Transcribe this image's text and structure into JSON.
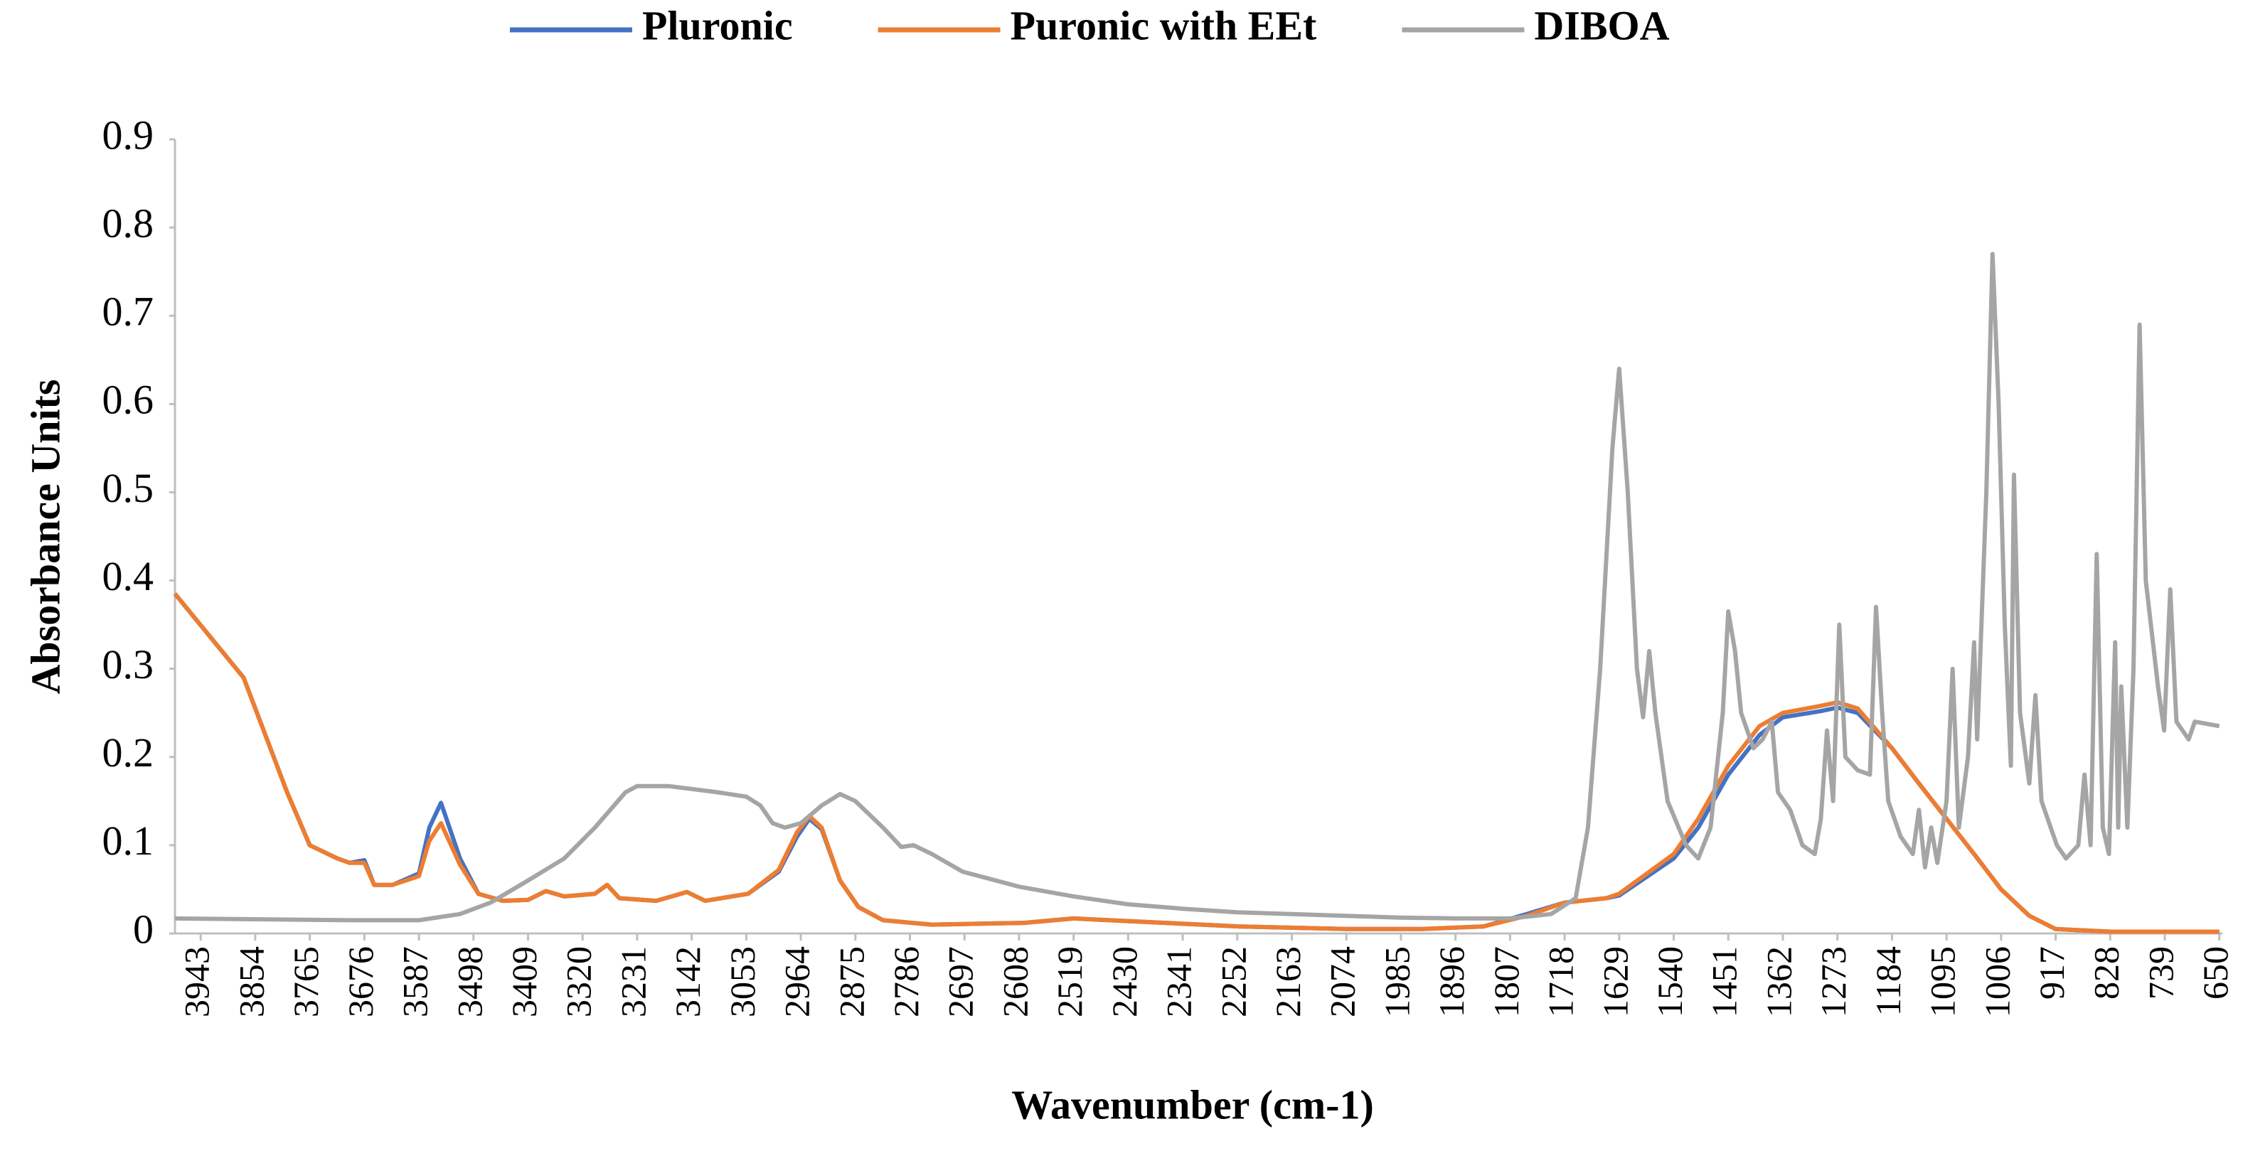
{
  "chart_data": {
    "type": "line",
    "xlabel": "Wavenumber (cm-1)",
    "ylabel": "Absorbance Units",
    "xlim": [
      3985,
      645
    ],
    "ylim": [
      0,
      0.9
    ],
    "yticks": [
      0,
      0.1,
      0.2,
      0.3,
      0.4,
      0.5,
      0.6,
      0.7,
      0.8,
      0.9
    ],
    "xticks": [
      3943,
      3854,
      3765,
      3676,
      3587,
      3498,
      3409,
      3320,
      3231,
      3142,
      3053,
      2964,
      2875,
      2786,
      2697,
      2608,
      2519,
      2430,
      2341,
      2252,
      2163,
      2074,
      1985,
      1896,
      1807,
      1718,
      1629,
      1540,
      1451,
      1362,
      1273,
      1184,
      1095,
      1006,
      917,
      828,
      739,
      650
    ],
    "series": [
      {
        "name": "Pluronic",
        "color": "#4472c4",
        "x": [
          3985,
          3873,
          3802,
          3765,
          3720,
          3700,
          3676,
          3660,
          3630,
          3587,
          3570,
          3551,
          3520,
          3490,
          3450,
          3409,
          3380,
          3350,
          3300,
          3280,
          3260,
          3200,
          3150,
          3120,
          3050,
          3000,
          2970,
          2950,
          2930,
          2900,
          2870,
          2830,
          2750,
          2600,
          2519,
          2400,
          2250,
          2074,
          1950,
          1850,
          1780,
          1718,
          1650,
          1629,
          1540,
          1500,
          1451,
          1400,
          1362,
          1300,
          1273,
          1240,
          1184,
          1140,
          1095,
          1050,
          1006,
          960,
          917,
          828,
          650
        ],
        "values": [
          0.385,
          0.29,
          0.16,
          0.1,
          0.085,
          0.08,
          0.083,
          0.055,
          0.055,
          0.068,
          0.12,
          0.148,
          0.085,
          0.045,
          0.037,
          0.038,
          0.048,
          0.042,
          0.045,
          0.055,
          0.04,
          0.037,
          0.047,
          0.037,
          0.045,
          0.07,
          0.11,
          0.13,
          0.118,
          0.06,
          0.03,
          0.015,
          0.01,
          0.012,
          0.017,
          0.013,
          0.008,
          0.005,
          0.005,
          0.008,
          0.022,
          0.035,
          0.04,
          0.043,
          0.085,
          0.12,
          0.18,
          0.225,
          0.245,
          0.252,
          0.256,
          0.25,
          0.21,
          0.17,
          0.13,
          0.09,
          0.05,
          0.02,
          0.005,
          0.002,
          0.002
        ]
      },
      {
        "name": "Puronic with EEt",
        "color": "#ed7d31",
        "x": [
          3985,
          3873,
          3802,
          3765,
          3720,
          3700,
          3676,
          3660,
          3630,
          3587,
          3570,
          3551,
          3520,
          3490,
          3450,
          3409,
          3380,
          3350,
          3300,
          3280,
          3260,
          3200,
          3150,
          3120,
          3050,
          3000,
          2970,
          2950,
          2930,
          2900,
          2870,
          2830,
          2750,
          2600,
          2519,
          2400,
          2250,
          2074,
          1950,
          1850,
          1780,
          1718,
          1650,
          1629,
          1540,
          1500,
          1451,
          1400,
          1362,
          1300,
          1273,
          1240,
          1184,
          1140,
          1095,
          1050,
          1006,
          960,
          917,
          828,
          650
        ],
        "values": [
          0.385,
          0.29,
          0.16,
          0.1,
          0.085,
          0.08,
          0.08,
          0.055,
          0.055,
          0.065,
          0.105,
          0.125,
          0.078,
          0.045,
          0.037,
          0.038,
          0.048,
          0.042,
          0.045,
          0.055,
          0.04,
          0.037,
          0.047,
          0.037,
          0.045,
          0.072,
          0.115,
          0.133,
          0.12,
          0.06,
          0.03,
          0.015,
          0.01,
          0.012,
          0.017,
          0.013,
          0.008,
          0.005,
          0.005,
          0.008,
          0.02,
          0.035,
          0.04,
          0.045,
          0.09,
          0.13,
          0.19,
          0.235,
          0.25,
          0.258,
          0.262,
          0.255,
          0.21,
          0.17,
          0.13,
          0.09,
          0.05,
          0.02,
          0.005,
          0.002,
          0.002
        ]
      },
      {
        "name": "DIBOA",
        "color": "#a5a5a5",
        "x": [
          3985,
          3700,
          3587,
          3520,
          3470,
          3409,
          3350,
          3300,
          3250,
          3231,
          3180,
          3100,
          3053,
          3030,
          3010,
          2990,
          2964,
          2930,
          2900,
          2875,
          2830,
          2800,
          2780,
          2750,
          2700,
          2608,
          2519,
          2430,
          2341,
          2252,
          2163,
          2074,
          1985,
          1896,
          1807,
          1740,
          1700,
          1680,
          1660,
          1640,
          1629,
          1615,
          1600,
          1590,
          1580,
          1570,
          1550,
          1520,
          1500,
          1480,
          1460,
          1451,
          1440,
          1430,
          1410,
          1395,
          1380,
          1370,
          1350,
          1330,
          1310,
          1300,
          1290,
          1280,
          1270,
          1260,
          1240,
          1220,
          1210,
          1200,
          1190,
          1170,
          1150,
          1140,
          1130,
          1120,
          1110,
          1095,
          1085,
          1075,
          1060,
          1050,
          1045,
          1030,
          1020,
          1010,
          1000,
          990,
          985,
          975,
          960,
          950,
          940,
          930,
          915,
          900,
          880,
          870,
          860,
          850,
          840,
          830,
          820,
          815,
          810,
          800,
          790,
          780,
          770,
          750,
          740,
          730,
          720,
          700,
          690,
          650
        ],
        "values": [
          0.017,
          0.015,
          0.015,
          0.022,
          0.035,
          0.06,
          0.085,
          0.12,
          0.16,
          0.167,
          0.167,
          0.16,
          0.155,
          0.145,
          0.125,
          0.12,
          0.125,
          0.145,
          0.158,
          0.15,
          0.12,
          0.098,
          0.1,
          0.09,
          0.07,
          0.053,
          0.042,
          0.033,
          0.028,
          0.024,
          0.022,
          0.02,
          0.018,
          0.017,
          0.017,
          0.022,
          0.04,
          0.12,
          0.3,
          0.55,
          0.64,
          0.5,
          0.3,
          0.245,
          0.32,
          0.25,
          0.15,
          0.1,
          0.085,
          0.12,
          0.25,
          0.365,
          0.32,
          0.25,
          0.21,
          0.22,
          0.24,
          0.16,
          0.14,
          0.1,
          0.09,
          0.13,
          0.23,
          0.15,
          0.35,
          0.2,
          0.185,
          0.18,
          0.37,
          0.25,
          0.15,
          0.11,
          0.09,
          0.14,
          0.075,
          0.12,
          0.08,
          0.15,
          0.3,
          0.12,
          0.2,
          0.33,
          0.22,
          0.5,
          0.77,
          0.6,
          0.35,
          0.19,
          0.52,
          0.25,
          0.17,
          0.27,
          0.15,
          0.13,
          0.1,
          0.085,
          0.1,
          0.18,
          0.1,
          0.43,
          0.12,
          0.09,
          0.33,
          0.12,
          0.28,
          0.12,
          0.3,
          0.69,
          0.4,
          0.28,
          0.23,
          0.39,
          0.24,
          0.22,
          0.24,
          0.235
        ]
      }
    ]
  }
}
